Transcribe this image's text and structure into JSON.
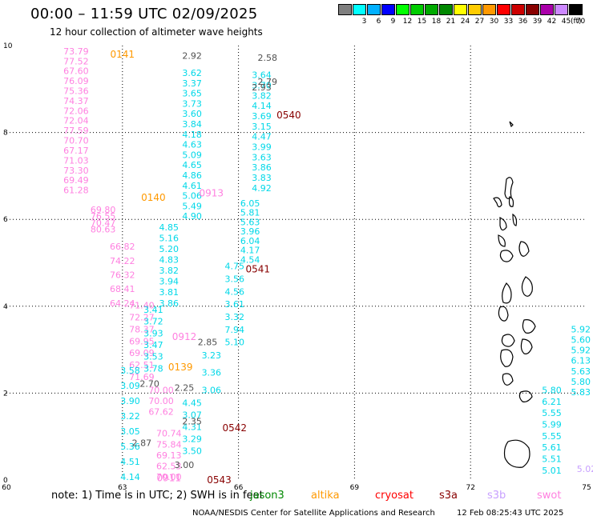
{
  "header": {
    "title": "00:00 – 11:59 UTC 02/09/2025",
    "subtitle": "12 hour collection of altimeter wave heights"
  },
  "legend": {
    "unit": "(ft)",
    "items": [
      {
        "label": "",
        "color": "#7f7f7f"
      },
      {
        "label": "3",
        "color": "#00ffff"
      },
      {
        "label": "6",
        "color": "#00b0ff"
      },
      {
        "label": "9",
        "color": "#0000ff"
      },
      {
        "label": "12",
        "color": "#00ff00"
      },
      {
        "label": "15",
        "color": "#00cc00"
      },
      {
        "label": "18",
        "color": "#00aa00"
      },
      {
        "label": "21",
        "color": "#008800"
      },
      {
        "label": "24",
        "color": "#ffff00"
      },
      {
        "label": "27",
        "color": "#ffcc00"
      },
      {
        "label": "30",
        "color": "#ff9900"
      },
      {
        "label": "33",
        "color": "#ff0000"
      },
      {
        "label": "36",
        "color": "#cc0000"
      },
      {
        "label": "39",
        "color": "#880000"
      },
      {
        "label": "42",
        "color": "#aa00aa"
      },
      {
        "label": "45",
        "color": "#cc88ff"
      },
      {
        "label": "70",
        "color": "#000000"
      }
    ]
  },
  "axes": {
    "x_ticks": [
      "60",
      "63",
      "66",
      "69",
      "72",
      "75"
    ],
    "y_ticks": [
      "0",
      "2",
      "4",
      "6",
      "8",
      "10"
    ]
  },
  "colors": {
    "cyan": "#00d8e8",
    "pink": "#ff80e0",
    "gray": "#505050",
    "orange": "#ff9900",
    "darkred": "#880000",
    "lilac": "#c8a0ff",
    "green": "#008800",
    "red": "#ff0000",
    "coast": "#000000"
  },
  "tracks": [
    {
      "color": "pink",
      "lon": 61.8,
      "lat0": 9.8,
      "lat1": 6.6,
      "values": [
        "73.79",
        "77.52",
        "67.60",
        "76.09",
        "75.36",
        "74.37",
        "72.06",
        "72.04",
        "77.59",
        "70.70",
        "67.17",
        "71.03",
        "73.30",
        "69.49",
        "61.28"
      ]
    },
    {
      "color": "pink",
      "lon": 62.5,
      "lat0": 6.15,
      "lat1": 5.7,
      "values": [
        "69.80",
        "76.55",
        "70.47",
        "80.63"
      ]
    },
    {
      "color": "pink",
      "lon": 63.0,
      "lat0": 5.3,
      "lat1": 4.0,
      "values": [
        "66.82",
        "74.22",
        "76.32",
        "68.41",
        "64.24"
      ]
    },
    {
      "color": "pink",
      "lon": 63.5,
      "lat0": 3.95,
      "lat1": 2.3,
      "values": [
        "71.40",
        "72.27",
        "78.37",
        "69.95",
        "69.09",
        "62.51",
        "71.69"
      ]
    },
    {
      "color": "pink",
      "lon": 64.0,
      "lat0": 2.0,
      "lat1": 1.5,
      "values": [
        "70.00",
        "70.00",
        "67.62"
      ]
    },
    {
      "color": "pink",
      "lon": 64.2,
      "lat0": 1.0,
      "lat1": 0.0,
      "values": [
        "70.74",
        "75.84",
        "69.13",
        "62.53",
        "70.00"
      ]
    },
    {
      "color": "cyan",
      "lon": 64.8,
      "lat0": 9.3,
      "lat1": 6.0,
      "values": [
        "3.62",
        "3.37",
        "3.65",
        "3.73",
        "3.60",
        "3.84",
        "4.18",
        "4.63",
        "5.09",
        "4.65",
        "4.86",
        "4.61",
        "5.06",
        "5.49",
        "4.90"
      ]
    },
    {
      "color": "cyan",
      "lon": 64.2,
      "lat0": 5.75,
      "lat1": 4.0,
      "values": [
        "4.85",
        "5.16",
        "5.20",
        "4.83",
        "3.82",
        "3.94",
        "3.81",
        "3.86"
      ]
    },
    {
      "color": "cyan",
      "lon": 63.8,
      "lat0": 3.85,
      "lat1": 2.5,
      "values": [
        "3.41",
        "3.72",
        "3.93",
        "3.47",
        "3.53",
        "3.78"
      ]
    },
    {
      "color": "cyan",
      "lon": 63.2,
      "lat0": 2.45,
      "lat1": 0.0,
      "values": [
        "3.58",
        "3.09",
        "3.90",
        "3.22",
        "3.05",
        "5.36",
        "4.51",
        "4.14"
      ]
    },
    {
      "color": "cyan",
      "lon": 64.8,
      "lat0": 1.7,
      "lat1": 0.6,
      "values": [
        "4.45",
        "3.07",
        "4.31",
        "3.29",
        "3.50"
      ]
    },
    {
      "color": "cyan",
      "lon": 65.3,
      "lat0": 2.8,
      "lat1": 2.0,
      "values": [
        "3.23",
        "3.36",
        "3.06"
      ]
    },
    {
      "color": "cyan",
      "lon": 65.9,
      "lat0": 4.85,
      "lat1": 3.1,
      "values": [
        "4.75",
        "3.56",
        "4.56",
        "3.61",
        "3.32",
        "7.94",
        "5.10"
      ]
    },
    {
      "color": "cyan",
      "lon": 66.3,
      "lat0": 6.3,
      "lat1": 5.0,
      "values": [
        "6.05",
        "5.81",
        "5.63",
        "3.96",
        "6.04",
        "4.17",
        "4.54"
      ]
    },
    {
      "color": "cyan",
      "lon": 66.6,
      "lat0": 9.25,
      "lat1": 6.65,
      "values": [
        "3.64",
        "3.70",
        "3.82",
        "4.14",
        "3.69",
        "3.15",
        "4.47",
        "3.99",
        "3.63",
        "3.86",
        "3.83",
        "4.92"
      ]
    },
    {
      "color": "cyan",
      "lon": 74.1,
      "lat0": 2.0,
      "lat1": 0.15,
      "values": [
        "5.80",
        "6.21",
        "5.55",
        "5.99",
        "5.55",
        "5.61",
        "5.51",
        "5.01"
      ]
    },
    {
      "color": "cyan",
      "lon": 74.85,
      "lat0": 3.4,
      "lat1": 1.95,
      "values": [
        "5.92",
        "5.60",
        "5.92",
        "6.13",
        "5.63",
        "5.80",
        "5.83"
      ]
    },
    {
      "color": "gray",
      "lon": 64.8,
      "lat0": 9.7,
      "lat1": 9.7,
      "values": [
        "2.92"
      ]
    },
    {
      "color": "gray",
      "lon": 66.75,
      "lat0": 9.65,
      "lat1": 9.1,
      "values": [
        "2.58",
        "2.79"
      ]
    },
    {
      "color": "gray",
      "lon": 66.6,
      "lat0": 8.97,
      "lat1": 8.97,
      "values": [
        "2.93"
      ]
    },
    {
      "color": "gray",
      "lon": 65.2,
      "lat0": 3.1,
      "lat1": 3.1,
      "values": [
        "2.85"
      ]
    },
    {
      "color": "gray",
      "lon": 64.6,
      "lat0": 2.05,
      "lat1": 2.05,
      "values": [
        "2.25"
      ]
    },
    {
      "color": "gray",
      "lon": 63.7,
      "lat0": 2.15,
      "lat1": 2.15,
      "values": [
        "2.70"
      ]
    },
    {
      "color": "gray",
      "lon": 64.8,
      "lat0": 1.28,
      "lat1": 1.28,
      "values": [
        "2.35"
      ]
    },
    {
      "color": "gray",
      "lon": 63.5,
      "lat0": 0.78,
      "lat1": 0.78,
      "values": [
        "2.87"
      ]
    },
    {
      "color": "gray",
      "lon": 64.6,
      "lat0": 0.28,
      "lat1": 0.28,
      "values": [
        "3.00"
      ]
    },
    {
      "color": "lilac",
      "lon": 75.0,
      "lat0": 0.18,
      "lat1": 0.18,
      "values": [
        "5.02"
      ]
    }
  ],
  "passes": [
    {
      "label": "0141",
      "color": "orange",
      "lon": 63.0,
      "lat": 9.8
    },
    {
      "label": "0140",
      "color": "orange",
      "lon": 63.8,
      "lat": 6.5
    },
    {
      "label": "0139",
      "color": "orange",
      "lon": 64.5,
      "lat": 2.6
    },
    {
      "label": "0543",
      "color": "darkred",
      "lon": 65.5,
      "lat": 0.0
    },
    {
      "label": "0913",
      "color": "pink",
      "lon": 65.3,
      "lat": 6.6
    },
    {
      "label": "0912",
      "color": "pink",
      "lon": 64.6,
      "lat": 3.3
    },
    {
      "label": "0911",
      "color": "pink",
      "lon": 64.2,
      "lat": 0.05
    },
    {
      "label": "0540",
      "color": "darkred",
      "lon": 67.3,
      "lat": 8.4
    },
    {
      "label": "0541",
      "color": "darkred",
      "lon": 66.5,
      "lat": 4.85
    },
    {
      "label": "0542",
      "color": "darkred",
      "lon": 65.9,
      "lat": 1.2
    }
  ],
  "footer": {
    "note": "note:  1) Time is in UTC;  2) SWH is in feet",
    "satellites": [
      {
        "name": "jason3",
        "color": "green"
      },
      {
        "name": "altika",
        "color": "orange"
      },
      {
        "name": "cryosat",
        "color": "red"
      },
      {
        "name": "s3a",
        "color": "darkred"
      },
      {
        "name": "s3b",
        "color": "lilac"
      },
      {
        "name": "swot",
        "color": "pink"
      }
    ],
    "credit": "NOAA/NESDIS Center for Satellite Applications and Research",
    "timestamp": "12 Feb 08:25:43 UTC 2025"
  }
}
